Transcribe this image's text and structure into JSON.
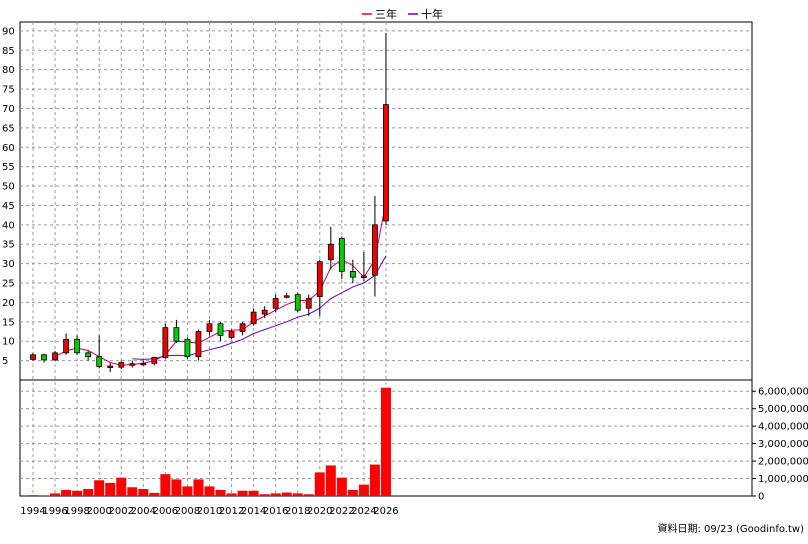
{
  "chart_data": [
    {
      "type": "candlestick",
      "legend": [
        {
          "label": "三年",
          "color": "#cc0066"
        },
        {
          "label": "十年",
          "color": "#6600cc"
        }
      ],
      "ylim": [
        0,
        91
      ],
      "y_ticks": [
        5,
        10,
        15,
        20,
        25,
        30,
        35,
        40,
        45,
        50,
        55,
        60,
        65,
        70,
        75,
        80,
        85,
        90
      ],
      "grid": true,
      "up_color": "#ee0000",
      "down_color": "#00cc00",
      "candles": [
        {
          "year": 1994,
          "open": 5.3,
          "close": 6.5,
          "high": 7.0,
          "low": 5.0
        },
        {
          "year": 1995,
          "open": 6.5,
          "close": 5.2,
          "high": 6.8,
          "low": 4.5
        },
        {
          "year": 1996,
          "open": 5.2,
          "close": 7.0,
          "high": 7.5,
          "low": 4.8
        },
        {
          "year": 1997,
          "open": 7.0,
          "close": 10.5,
          "high": 12.0,
          "low": 6.5
        },
        {
          "year": 1998,
          "open": 10.5,
          "close": 7.0,
          "high": 11.5,
          "low": 6.5
        },
        {
          "year": 1999,
          "open": 7.0,
          "close": 6.0,
          "high": 7.5,
          "low": 5.0
        },
        {
          "year": 2000,
          "open": 6.0,
          "close": 3.5,
          "high": 11.5,
          "low": 3.0
        },
        {
          "year": 2001,
          "open": 3.5,
          "close": 3.6,
          "high": 4.5,
          "low": 2.0
        },
        {
          "year": 2002,
          "open": 3.3,
          "close": 4.5,
          "high": 5.0,
          "low": 2.8
        },
        {
          "year": 2003,
          "open": 3.8,
          "close": 4.2,
          "high": 5.0,
          "low": 3.2
        },
        {
          "year": 2004,
          "open": 4.0,
          "close": 4.3,
          "high": 5.0,
          "low": 3.7
        },
        {
          "year": 2005,
          "open": 4.3,
          "close": 5.8,
          "high": 6.0,
          "low": 3.8
        },
        {
          "year": 2006,
          "open": 5.8,
          "close": 13.5,
          "high": 14.5,
          "low": 5.5
        },
        {
          "year": 2007,
          "open": 13.5,
          "close": 10.0,
          "high": 15.5,
          "low": 9.5
        },
        {
          "year": 2008,
          "open": 10.5,
          "close": 6.0,
          "high": 11.0,
          "low": 5.5
        },
        {
          "year": 2009,
          "open": 6.0,
          "close": 12.5,
          "high": 13.0,
          "low": 5.0
        },
        {
          "year": 2010,
          "open": 12.5,
          "close": 14.5,
          "high": 15.5,
          "low": 11.5
        },
        {
          "year": 2011,
          "open": 14.5,
          "close": 11.5,
          "high": 15.0,
          "low": 10.0
        },
        {
          "year": 2012,
          "open": 11.0,
          "close": 12.5,
          "high": 13.0,
          "low": 10.5
        },
        {
          "year": 2013,
          "open": 12.5,
          "close": 14.5,
          "high": 15.0,
          "low": 11.5
        },
        {
          "year": 2014,
          "open": 14.5,
          "close": 17.5,
          "high": 18.5,
          "low": 14.0
        },
        {
          "year": 2015,
          "open": 17.0,
          "close": 18.0,
          "high": 19.0,
          "low": 16.0
        },
        {
          "year": 2016,
          "open": 18.5,
          "close": 21.0,
          "high": 22.0,
          "low": 17.5
        },
        {
          "year": 2017,
          "open": 21.5,
          "close": 21.7,
          "high": 22.5,
          "low": 21.0
        },
        {
          "year": 2018,
          "open": 22.0,
          "close": 18.0,
          "high": 22.5,
          "low": 17.5
        },
        {
          "year": 2019,
          "open": 18.5,
          "close": 21.0,
          "high": 22.0,
          "low": 16.5
        },
        {
          "year": 2020,
          "open": 21.5,
          "close": 30.5,
          "high": 31.0,
          "low": 16.5
        },
        {
          "year": 2021,
          "open": 31.0,
          "close": 35.0,
          "high": 39.5,
          "low": 28.5
        },
        {
          "year": 2022,
          "open": 36.5,
          "close": 28.0,
          "high": 37.0,
          "low": 26.0
        },
        {
          "year": 2023,
          "open": 28.0,
          "close": 26.5,
          "high": 31.0,
          "low": 25.0
        },
        {
          "year": 2024,
          "open": 26.5,
          "close": 26.8,
          "high": 33.0,
          "low": 25.5
        },
        {
          "year": 2025,
          "open": 27.0,
          "close": 40.0,
          "high": 47.5,
          "low": 21.5
        },
        {
          "year": 2026,
          "open": 41.0,
          "close": 71.0,
          "high": 89.5,
          "low": 40.0
        }
      ],
      "series": [
        {
          "name": "三年",
          "x": [
            1996,
            1997,
            1998,
            1999,
            2000,
            2001,
            2002,
            2003,
            2004,
            2005,
            2006,
            2007,
            2008,
            2009,
            2010,
            2011,
            2012,
            2013,
            2014,
            2015,
            2016,
            2017,
            2018,
            2019,
            2020,
            2021,
            2022,
            2023,
            2024,
            2025,
            2026
          ],
          "values": [
            6.0,
            7.5,
            8.2,
            7.6,
            6.0,
            4.5,
            3.8,
            4.0,
            4.3,
            5.0,
            6.5,
            10.0,
            9.8,
            9.5,
            11.0,
            12.5,
            12.8,
            13.0,
            15.0,
            16.5,
            18.0,
            19.5,
            20.5,
            20.5,
            23.0,
            29.0,
            31.0,
            29.5,
            26.5,
            31.0,
            46.0
          ]
        },
        {
          "name": "十年",
          "x": [
            2003,
            2004,
            2005,
            2006,
            2007,
            2008,
            2009,
            2010,
            2011,
            2012,
            2013,
            2014,
            2015,
            2016,
            2017,
            2018,
            2019,
            2020,
            2021,
            2022,
            2023,
            2024,
            2025,
            2026
          ],
          "values": [
            5.5,
            5.3,
            5.5,
            6.2,
            6.4,
            6.2,
            7.0,
            7.8,
            8.5,
            9.5,
            10.5,
            12.0,
            13.0,
            14.0,
            15.0,
            16.2,
            17.0,
            18.5,
            21.0,
            22.5,
            24.0,
            25.0,
            27.0,
            32.0
          ]
        }
      ]
    },
    {
      "type": "bar",
      "ylim": [
        0,
        6700000
      ],
      "y_ticks": [
        0,
        1000000,
        2000000,
        3000000,
        4000000,
        5000000,
        6000000
      ],
      "y_tick_labels": [
        "0",
        "1,000,000",
        "2,000,000",
        "3,000,000",
        "4,000,000",
        "5,000,000",
        "6,000,000"
      ],
      "bar_color": "#ff0000",
      "x": [
        1994,
        1995,
        1996,
        1997,
        1998,
        1999,
        2000,
        2001,
        2002,
        2003,
        2004,
        2005,
        2006,
        2007,
        2008,
        2009,
        2010,
        2011,
        2012,
        2013,
        2014,
        2015,
        2016,
        2017,
        2018,
        2019,
        2020,
        2021,
        2022,
        2023,
        2024,
        2025,
        2026
      ],
      "values": [
        50000,
        40000,
        150000,
        350000,
        300000,
        400000,
        900000,
        750000,
        1050000,
        500000,
        400000,
        180000,
        1250000,
        950000,
        550000,
        950000,
        550000,
        350000,
        150000,
        300000,
        300000,
        100000,
        150000,
        200000,
        150000,
        100000,
        1350000,
        1750000,
        1050000,
        350000,
        650000,
        1800000,
        6200000
      ]
    }
  ],
  "x_axis_labels": [
    "1994",
    "1996",
    "1998",
    "2000",
    "2002",
    "2004",
    "2006",
    "2008",
    "2010",
    "2012",
    "2014",
    "2016",
    "2018",
    "2020",
    "2022",
    "2024",
    "2026"
  ],
  "footer": "資料日期: 09/23  (Goodinfo.tw)"
}
